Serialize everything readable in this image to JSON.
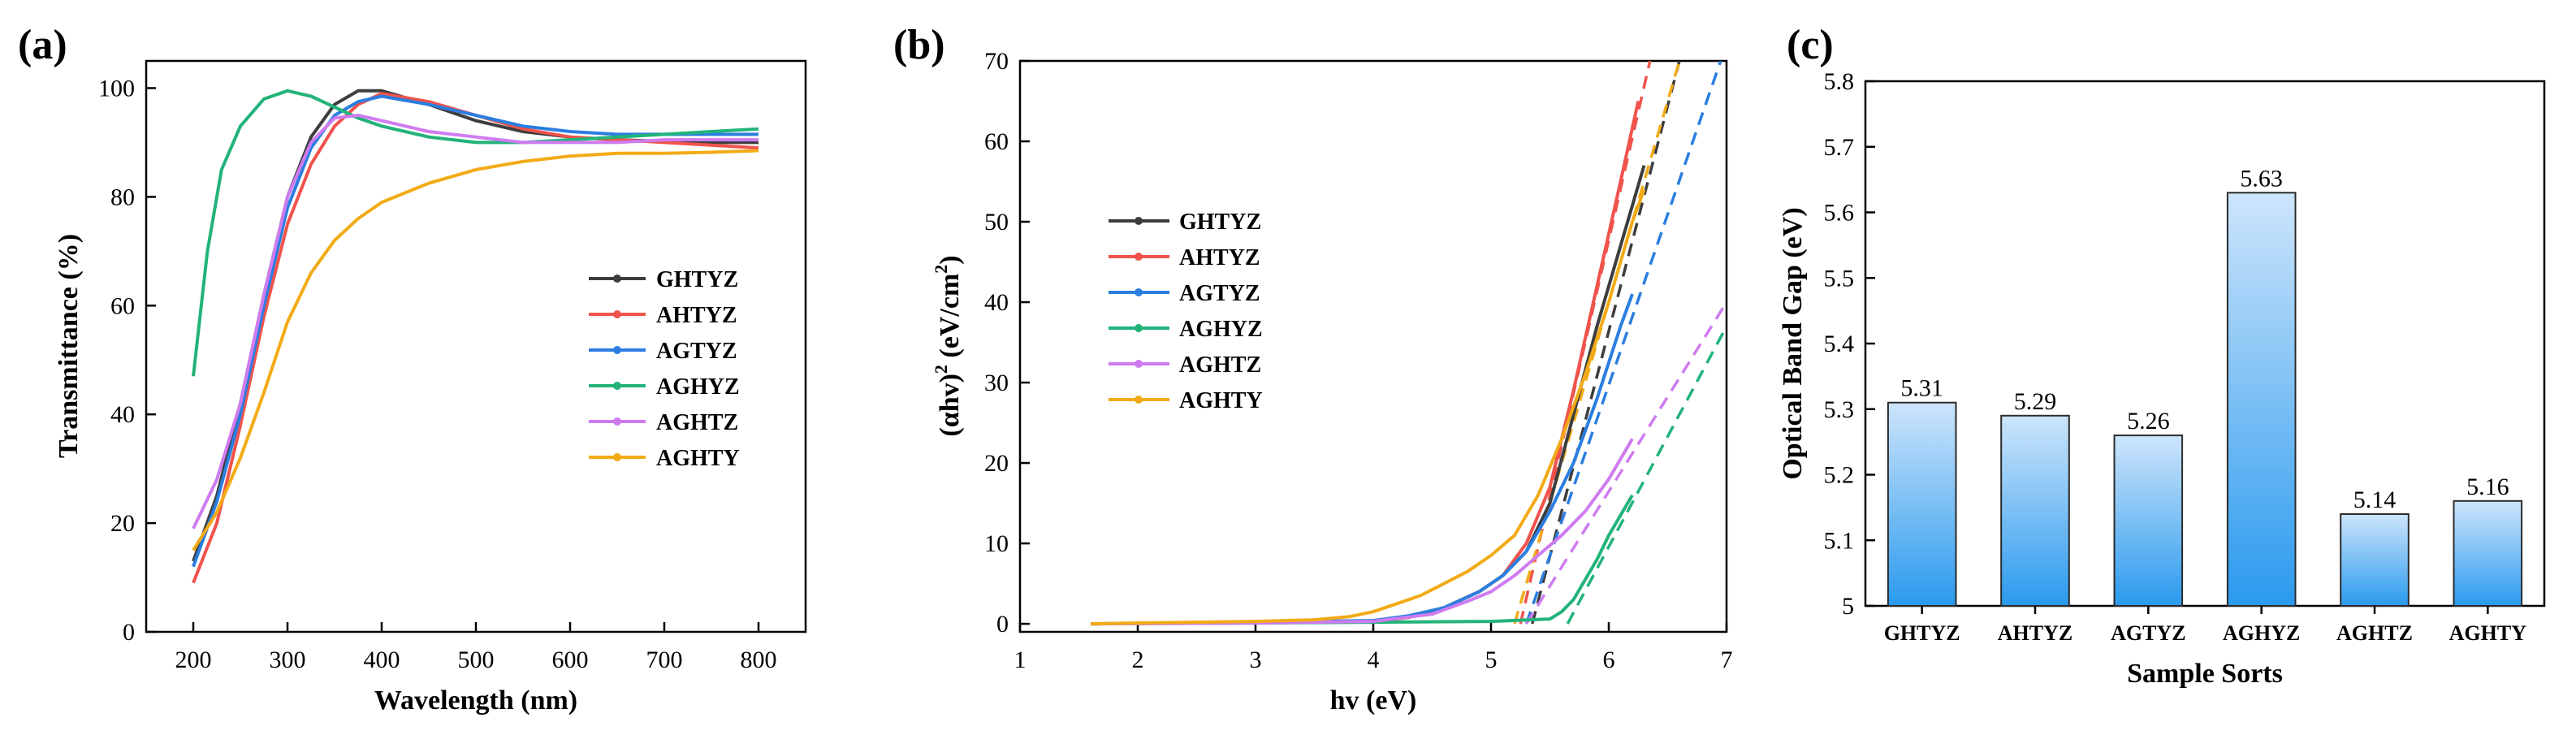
{
  "panels": {
    "a": "(a)",
    "b": "(b)",
    "c": "(c)"
  },
  "colors": {
    "GHTYZ": "#3d3d3d",
    "AHTYZ": "#f0534c",
    "AGTYZ": "#2b7ee0",
    "AGHYZ": "#22b37a",
    "AGHTZ": "#cf7bf0",
    "AGHTY": "#f2ab17",
    "bar_top": "#cde5fb",
    "bar_bottom": "#2a9aee"
  },
  "chart_data": [
    {
      "id": "a",
      "type": "line",
      "xlabel": "Wavelength (nm)",
      "ylabel": "Transmittance (%)",
      "xlim": [
        150,
        850
      ],
      "ylim": [
        0,
        105
      ],
      "xticks": [
        "200",
        "300",
        "400",
        "500",
        "600",
        "700",
        "800"
      ],
      "yticks": [
        "0",
        "20",
        "40",
        "60",
        "80",
        "100"
      ],
      "legend_position": "center-right",
      "series": [
        {
          "name": "GHTYZ",
          "x": [
            200,
            225,
            250,
            275,
            300,
            325,
            350,
            375,
            400,
            450,
            500,
            550,
            600,
            650,
            700,
            750,
            800
          ],
          "y": [
            13,
            25,
            42,
            62,
            80,
            91,
            97,
            99.5,
            99.5,
            97,
            94,
            92,
            91,
            90.5,
            90.2,
            90,
            90
          ]
        },
        {
          "name": "AHTYZ",
          "x": [
            200,
            225,
            250,
            275,
            300,
            325,
            350,
            375,
            400,
            450,
            500,
            550,
            600,
            650,
            700,
            750,
            800
          ],
          "y": [
            9,
            20,
            38,
            58,
            75,
            86,
            93,
            97,
            99,
            97.5,
            95,
            92.5,
            91,
            90.5,
            90,
            89.5,
            89
          ]
        },
        {
          "name": "AGTYZ",
          "x": [
            200,
            225,
            250,
            275,
            300,
            325,
            350,
            375,
            400,
            450,
            500,
            550,
            600,
            650,
            700,
            750,
            800
          ],
          "y": [
            12,
            24,
            40,
            60,
            78,
            89,
            95,
            97.5,
            98.5,
            97,
            95,
            93,
            92,
            91.5,
            91.5,
            91.5,
            91.5
          ]
        },
        {
          "name": "AGHYZ",
          "x": [
            200,
            215,
            230,
            250,
            275,
            300,
            325,
            350,
            375,
            400,
            450,
            500,
            550,
            600,
            650,
            700,
            750,
            800
          ],
          "y": [
            47,
            70,
            85,
            93,
            98,
            99.5,
            98.5,
            96.5,
            94.5,
            93,
            91,
            90,
            90,
            90.5,
            91,
            91.5,
            92,
            92.5
          ]
        },
        {
          "name": "AGHTZ",
          "x": [
            200,
            225,
            250,
            275,
            300,
            325,
            350,
            375,
            400,
            450,
            500,
            550,
            600,
            650,
            700,
            750,
            800
          ],
          "y": [
            19,
            28,
            42,
            62,
            80,
            90,
            94.5,
            95,
            94,
            92,
            91,
            90,
            90,
            90,
            90.5,
            90.5,
            90.5
          ]
        },
        {
          "name": "AGHTY",
          "x": [
            200,
            225,
            250,
            275,
            300,
            325,
            350,
            375,
            400,
            450,
            500,
            550,
            600,
            650,
            700,
            750,
            800
          ],
          "y": [
            15,
            22,
            32,
            44,
            57,
            66,
            72,
            76,
            79,
            82.5,
            85,
            86.5,
            87.5,
            88,
            88,
            88.2,
            88.5
          ]
        }
      ]
    },
    {
      "id": "b",
      "type": "line",
      "xlabel": "hv (eV)",
      "ylabel_main": "(αhv)",
      "ylabel_sup1": "2",
      "ylabel_units": " (eV/cm",
      "ylabel_sup2": "2",
      "ylabel_close": ")",
      "xlim": [
        1,
        7
      ],
      "ylim": [
        -1,
        70
      ],
      "xticks": [
        "1",
        "2",
        "3",
        "4",
        "5",
        "6",
        "7"
      ],
      "yticks": [
        "0",
        "10",
        "20",
        "30",
        "40",
        "50",
        "60",
        "70"
      ],
      "legend_position": "upper-left",
      "series": [
        {
          "name": "GHTYZ",
          "x": [
            1.6,
            2.5,
            3.5,
            4.0,
            4.3,
            4.6,
            4.9,
            5.1,
            5.3,
            5.5,
            5.7,
            5.9,
            6.1,
            6.3
          ],
          "y": [
            0,
            0.1,
            0.2,
            0.3,
            0.8,
            2,
            4,
            6,
            9,
            15,
            26,
            37,
            47,
            57
          ],
          "fit": [
            [
              5.35,
              0
            ],
            [
              6.6,
              70
            ]
          ]
        },
        {
          "name": "AHTYZ",
          "x": [
            1.6,
            2.5,
            3.5,
            4.0,
            4.3,
            4.6,
            4.9,
            5.1,
            5.3,
            5.5,
            5.7,
            5.9,
            6.1,
            6.25
          ],
          "y": [
            0,
            0.1,
            0.2,
            0.3,
            0.8,
            2,
            4,
            6,
            10,
            17,
            29,
            42,
            55,
            65
          ],
          "fit": [
            [
              5.25,
              0
            ],
            [
              6.35,
              70
            ]
          ]
        },
        {
          "name": "AGTYZ",
          "x": [
            1.6,
            2.5,
            3.5,
            4.0,
            4.3,
            4.6,
            4.9,
            5.1,
            5.3,
            5.5,
            5.7,
            5.9,
            6.1,
            6.2
          ],
          "y": [
            0,
            0.1,
            0.3,
            0.4,
            1,
            2,
            4,
            6,
            9,
            14,
            20,
            28,
            37,
            41
          ],
          "fit": [
            [
              5.3,
              0
            ],
            [
              6.95,
              70
            ]
          ]
        },
        {
          "name": "AGHYZ",
          "x": [
            1.6,
            3.0,
            4.0,
            5.0,
            5.5,
            5.6,
            5.7,
            5.8,
            5.9,
            6.0,
            6.1,
            6.2
          ],
          "y": [
            0,
            0.1,
            0.2,
            0.3,
            0.6,
            1.5,
            3,
            5.5,
            8,
            11,
            13.5,
            16
          ],
          "fit": [
            [
              5.65,
              0
            ],
            [
              7.0,
              37
            ]
          ]
        },
        {
          "name": "AGHTZ",
          "x": [
            1.6,
            3.0,
            4.0,
            4.5,
            4.8,
            5.0,
            5.2,
            5.4,
            5.6,
            5.8,
            6.0,
            6.2
          ],
          "y": [
            0,
            0.1,
            0.3,
            1.2,
            2.8,
            4,
            6,
            8.5,
            11,
            14,
            18,
            23
          ],
          "fit": [
            [
              5.3,
              0
            ],
            [
              7.0,
              40
            ]
          ]
        },
        {
          "name": "AGHTY",
          "x": [
            1.6,
            2.0,
            2.5,
            3.0,
            3.5,
            3.8,
            4.0,
            4.2,
            4.4,
            4.6,
            4.8,
            5.0,
            5.2,
            5.4,
            5.6,
            5.8,
            6.0,
            6.2,
            6.3
          ],
          "y": [
            0,
            0.1,
            0.2,
            0.3,
            0.5,
            0.9,
            1.5,
            2.5,
            3.5,
            5,
            6.5,
            8.5,
            11,
            16,
            23,
            31,
            40,
            50,
            54
          ],
          "fit": [
            [
              5.2,
              0
            ],
            [
              6.6,
              70
            ]
          ]
        }
      ]
    },
    {
      "id": "c",
      "type": "bar",
      "xlabel": "Sample Sorts",
      "ylabel": "Optical Band Gap (eV)",
      "ylim": [
        5.0,
        5.8
      ],
      "yticks": [
        "5",
        "5.1",
        "5.2",
        "5.3",
        "5.4",
        "5.5",
        "5.6",
        "5.7",
        "5.8"
      ],
      "categories": [
        "GHTYZ",
        "AHTYZ",
        "AGTYZ",
        "AGHYZ",
        "AGHTZ",
        "AGHTY"
      ],
      "values": [
        5.31,
        5.29,
        5.26,
        5.63,
        5.14,
        5.16
      ],
      "value_labels": [
        "5.31",
        "5.29",
        "5.26",
        "5.63",
        "5.14",
        "5.16"
      ]
    }
  ]
}
